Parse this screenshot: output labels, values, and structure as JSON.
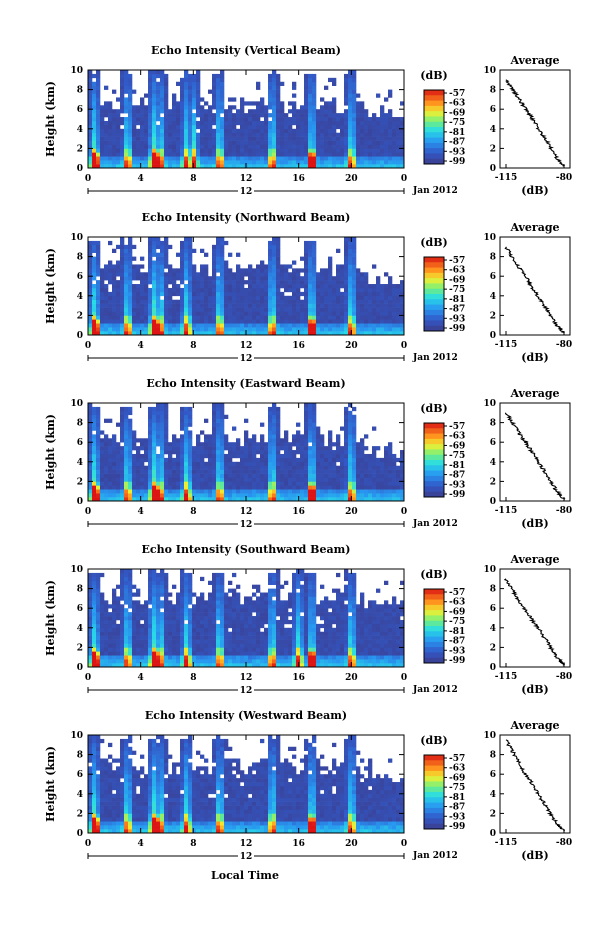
{
  "figure": {
    "x_axis_label": "Local Time",
    "month_label": "Jan 2012",
    "colorbar_unit": "(dB)",
    "colorbar_ticks": [
      "-57",
      "-63",
      "-69",
      "-75",
      "-81",
      "-87",
      "-93",
      "-99"
    ],
    "average_title": "Average",
    "average_xlabel": "(dB)",
    "average_xticks": [
      "-115",
      "-80"
    ]
  },
  "chart_data": [
    {
      "type": "heatmap",
      "title": "Echo Intensity (Vertical Beam)",
      "xlabel": "Local Time",
      "ylabel": "Height (km)",
      "xticks": [
        "0",
        "4",
        "8",
        "12",
        "16",
        "20",
        "0"
      ],
      "date_marker": "12",
      "yticks": [
        "0",
        "2",
        "4",
        "6",
        "8",
        "10"
      ],
      "ylim": [
        0,
        10
      ],
      "colorscale": {
        "min_db": -99,
        "max_db": -57,
        "unit": "dB"
      },
      "echo_top_km": 6.5,
      "convective_columns_local_time": [
        0.5,
        3,
        5,
        5.5,
        7.5,
        8,
        10,
        14,
        17,
        20
      ],
      "average_profile": {
        "x_db": [
          -115,
          -110,
          -105,
          -100,
          -95,
          -90,
          -85,
          -80
        ],
        "height_km": [
          9,
          7.8,
          6.5,
          5.3,
          3.9,
          2.6,
          1.2,
          0.2
        ]
      }
    },
    {
      "type": "heatmap",
      "title": "Echo Intensity (Northward Beam)",
      "xlabel": "Local Time",
      "ylabel": "Height (km)",
      "xticks": [
        "0",
        "4",
        "8",
        "12",
        "16",
        "20",
        "0"
      ],
      "date_marker": "12",
      "yticks": [
        "0",
        "2",
        "4",
        "6",
        "8",
        "10"
      ],
      "ylim": [
        0,
        10
      ],
      "colorscale": {
        "min_db": -99,
        "max_db": -57,
        "unit": "dB"
      },
      "echo_top_km": 6.8,
      "convective_columns_local_time": [
        0.5,
        3,
        5,
        5.5,
        7.5,
        10,
        14,
        17,
        20
      ],
      "average_profile": {
        "x_db": [
          -115,
          -110,
          -105,
          -100,
          -95,
          -90,
          -85,
          -80
        ],
        "height_km": [
          9,
          7.6,
          6.4,
          5.1,
          3.8,
          2.5,
          1.1,
          0.2
        ]
      }
    },
    {
      "type": "heatmap",
      "title": "Echo Intensity (Eastward Beam)",
      "xlabel": "Local Time",
      "ylabel": "Height (km)",
      "xticks": [
        "0",
        "4",
        "8",
        "12",
        "16",
        "20",
        "0"
      ],
      "date_marker": "12",
      "yticks": [
        "0",
        "2",
        "4",
        "6",
        "8",
        "10"
      ],
      "ylim": [
        0,
        10
      ],
      "colorscale": {
        "min_db": -99,
        "max_db": -57,
        "unit": "dB"
      },
      "echo_top_km": 6.3,
      "convective_columns_local_time": [
        0.5,
        3,
        5,
        5.5,
        7.5,
        10,
        14,
        17,
        20
      ],
      "average_profile": {
        "x_db": [
          -115,
          -110,
          -105,
          -100,
          -95,
          -90,
          -85,
          -80
        ],
        "height_km": [
          9,
          7.7,
          6.4,
          5.2,
          3.9,
          2.6,
          1.2,
          0.2
        ]
      }
    },
    {
      "type": "heatmap",
      "title": "Echo Intensity (Southward Beam)",
      "xlabel": "Local Time",
      "ylabel": "Height (km)",
      "xticks": [
        "0",
        "4",
        "8",
        "12",
        "16",
        "20",
        "0"
      ],
      "date_marker": "12",
      "yticks": [
        "0",
        "2",
        "4",
        "6",
        "8",
        "10"
      ],
      "ylim": [
        0,
        10
      ],
      "colorscale": {
        "min_db": -99,
        "max_db": -57,
        "unit": "dB"
      },
      "echo_top_km": 7.2,
      "convective_columns_local_time": [
        0.5,
        3,
        5,
        5.5,
        7.5,
        10,
        14,
        16,
        17,
        20
      ],
      "average_profile": {
        "x_db": [
          -115,
          -110,
          -105,
          -100,
          -95,
          -90,
          -85,
          -80
        ],
        "height_km": [
          9,
          7.5,
          6.2,
          5.0,
          3.8,
          2.5,
          1.1,
          0.2
        ]
      }
    },
    {
      "type": "heatmap",
      "title": "Echo Intensity (Westward Beam)",
      "xlabel": "Local Time",
      "ylabel": "Height (km)",
      "xticks": [
        "0",
        "4",
        "8",
        "12",
        "16",
        "20",
        "0"
      ],
      "date_marker": "12",
      "yticks": [
        "0",
        "2",
        "4",
        "6",
        "8",
        "10"
      ],
      "ylim": [
        0,
        10
      ],
      "colorscale": {
        "min_db": -99,
        "max_db": -57,
        "unit": "dB"
      },
      "echo_top_km": 6.8,
      "convective_columns_local_time": [
        0.5,
        3,
        5,
        5.5,
        7.5,
        10,
        14,
        17,
        20
      ],
      "average_profile": {
        "x_db": [
          -115,
          -110,
          -105,
          -100,
          -95,
          -90,
          -85,
          -80
        ],
        "height_km": [
          9.5,
          8,
          6.5,
          5.2,
          3.8,
          2.5,
          1.1,
          0.2
        ]
      }
    }
  ]
}
